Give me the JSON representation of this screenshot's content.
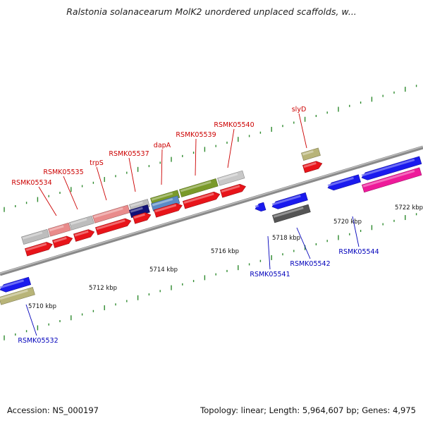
{
  "title": "Ralstonia solanacearum MolK2 unordered unplaced scaffolds, w...",
  "footer": {
    "accession": "Accession: NS_000197",
    "summary": "Topology: linear; Length: 5,964,607 bp; Genes: 4,975"
  },
  "colors": {
    "backbone": "#8a8a8a",
    "gene_top": "#e8141a",
    "gene_bottom": "#1a1aee",
    "label_top": "#cc0000",
    "label_bottom": "#0000bb",
    "tick": "#2e8a2e"
  },
  "scale": {
    "ticks": [
      "5710 kbp",
      "5712 kbp",
      "5714 kbp",
      "5716 kbp",
      "5718 kbp",
      "5720 kbp",
      "5722 kbp"
    ]
  },
  "gene_labels_top": [
    "RSMK05534",
    "RSMK05535",
    "trpS",
    "RSMK05537",
    "dapA",
    "RSMK05539",
    "RSMK05540",
    "slyD"
  ],
  "gene_labels_bottom": [
    "RSMK05532",
    "RSMK05541",
    "RSMK05542",
    "RSMK05544"
  ]
}
